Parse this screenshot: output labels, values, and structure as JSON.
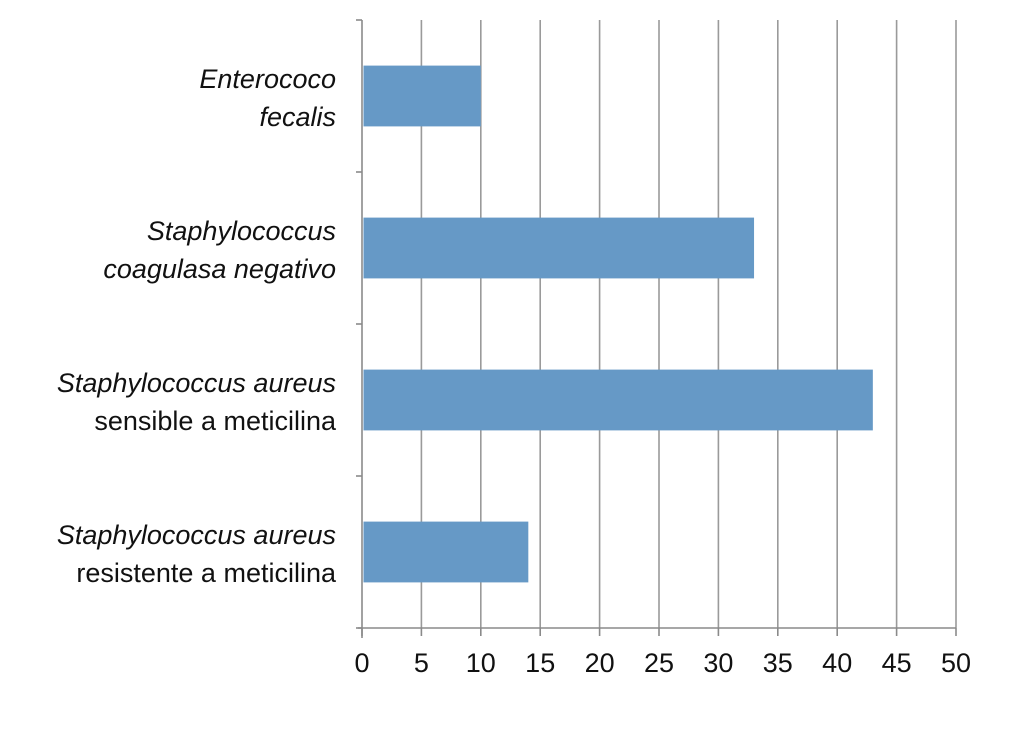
{
  "chart_data": {
    "type": "bar",
    "orientation": "horizontal",
    "categories": [
      {
        "line1": "Enterococo",
        "line1_italic": true,
        "line2": "fecalis",
        "line2_italic": true
      },
      {
        "line1": "Staphylococcus",
        "line1_italic": true,
        "line2": "coagulasa negativo",
        "line2_italic": true
      },
      {
        "line1": "Staphylococcus aureus",
        "line1_italic": true,
        "line2": "sensible a meticilina",
        "line2_italic": false
      },
      {
        "line1": "Staphylococcus aureus",
        "line1_italic": true,
        "line2": "resistente a meticilina",
        "line2_italic": false
      }
    ],
    "values": [
      10,
      33,
      43,
      14
    ],
    "xlim": [
      0,
      50
    ],
    "xticks": [
      0,
      5,
      10,
      15,
      20,
      25,
      30,
      35,
      40,
      45,
      50
    ],
    "title": "",
    "xlabel": "",
    "ylabel": "",
    "grid": "vertical",
    "legend": "none",
    "bar_color": "#6699c6"
  }
}
